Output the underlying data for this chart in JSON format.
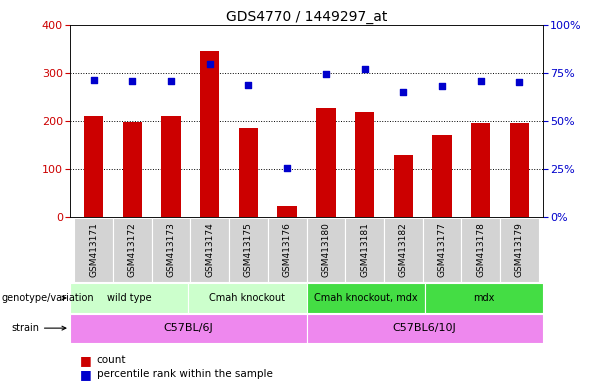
{
  "title": "GDS4770 / 1449297_at",
  "samples": [
    "GSM413171",
    "GSM413172",
    "GSM413173",
    "GSM413174",
    "GSM413175",
    "GSM413176",
    "GSM413180",
    "GSM413181",
    "GSM413182",
    "GSM413177",
    "GSM413178",
    "GSM413179"
  ],
  "counts": [
    210,
    197,
    210,
    345,
    186,
    22,
    228,
    218,
    130,
    170,
    195,
    196
  ],
  "percentile_ranks": [
    71.25,
    70.75,
    70.75,
    79.5,
    68.75,
    25.75,
    74.5,
    77.0,
    65.0,
    68.25,
    70.75,
    70.25
  ],
  "bar_color": "#cc0000",
  "dot_color": "#0000cc",
  "ylim_left": [
    0,
    400
  ],
  "ylim_right": [
    0,
    100
  ],
  "yticks_left": [
    0,
    100,
    200,
    300,
    400
  ],
  "yticks_right": [
    0,
    25,
    50,
    75,
    100
  ],
  "genotype_groups": [
    {
      "label": "wild type",
      "start": 0,
      "end": 3,
      "color": "#ccffcc"
    },
    {
      "label": "Cmah knockout",
      "start": 3,
      "end": 6,
      "color": "#ccffcc"
    },
    {
      "label": "Cmah knockout, mdx",
      "start": 6,
      "end": 9,
      "color": "#44dd44"
    },
    {
      "label": "mdx",
      "start": 9,
      "end": 12,
      "color": "#44dd44"
    }
  ],
  "strain_groups": [
    {
      "label": "C57BL/6J",
      "start": 0,
      "end": 6,
      "color": "#ee88ee"
    },
    {
      "label": "C57BL6/10J",
      "start": 6,
      "end": 12,
      "color": "#ee88ee"
    }
  ],
  "genotype_label": "genotype/variation",
  "strain_label": "strain",
  "legend_count_label": "count",
  "legend_pct_label": "percentile rank within the sample",
  "bar_width": 0.5,
  "grid_color": "#000000",
  "tick_label_color_left": "#cc0000",
  "tick_label_color_right": "#0000cc"
}
